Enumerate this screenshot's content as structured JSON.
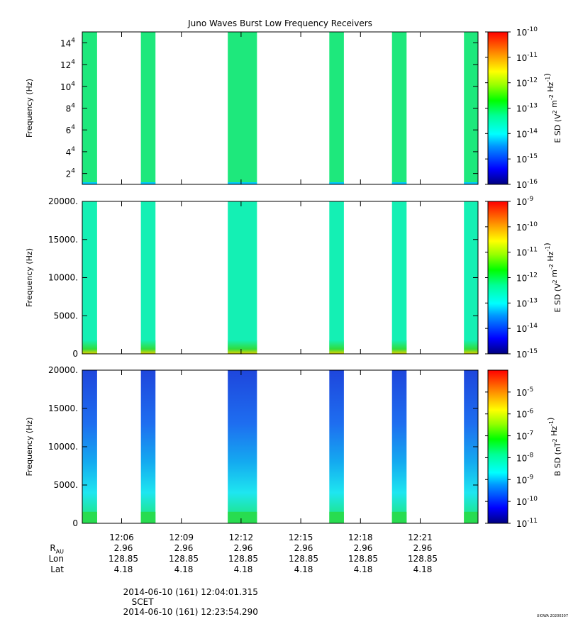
{
  "chart_data": [
    {
      "type": "heatmap",
      "title": "Juno Waves Burst Low Frequency Receivers",
      "ylabel": "Frequency (Hz)",
      "ylim": [
        10000,
        150000
      ],
      "yticks": [
        20000,
        40000,
        60000,
        80000,
        100000,
        120000,
        140000
      ],
      "ytick_labels": [
        {
          "mant": "2",
          "exp": "4"
        },
        {
          "mant": "4",
          "exp": "4"
        },
        {
          "mant": "6",
          "exp": "4"
        },
        {
          "mant": "8",
          "exp": "4"
        },
        {
          "mant": "10",
          "exp": "4"
        },
        {
          "mant": "12",
          "exp": "4"
        },
        {
          "mant": "14",
          "exp": "4"
        }
      ],
      "colorbar": {
        "label": "E SD (V^2 m^-2 Hz^-1)",
        "log_range": [
          -16,
          -10
        ],
        "ticks": [
          {
            "mant": "10",
            "exp": "-10"
          },
          {
            "mant": "10",
            "exp": "-11"
          },
          {
            "mant": "10",
            "exp": "-12"
          },
          {
            "mant": "10",
            "exp": "-13"
          },
          {
            "mant": "10",
            "exp": "-14"
          },
          {
            "mant": "10",
            "exp": "-15"
          },
          {
            "mant": "10",
            "exp": "-16"
          }
        ]
      },
      "dominant_color": "#1ee87c",
      "edge_color": "#00c8ff",
      "low_band": null
    },
    {
      "type": "heatmap",
      "title": "",
      "ylabel": "Frequency (Hz)",
      "ylim": [
        0,
        20000
      ],
      "yticks": [
        0,
        5000,
        10000,
        15000,
        20000
      ],
      "ytick_text": [
        "0",
        "5000.",
        "10000.",
        "15000.",
        "20000."
      ],
      "colorbar": {
        "label": "E SD (V^2 m^-2 Hz^-1)",
        "log_range": [
          -15,
          -9
        ],
        "ticks": [
          {
            "mant": "10",
            "exp": "-9"
          },
          {
            "mant": "10",
            "exp": "-10"
          },
          {
            "mant": "10",
            "exp": "-11"
          },
          {
            "mant": "10",
            "exp": "-12"
          },
          {
            "mant": "10",
            "exp": "-13"
          },
          {
            "mant": "10",
            "exp": "-14"
          },
          {
            "mant": "10",
            "exp": "-15"
          }
        ]
      },
      "dominant_color": "#14f0b4",
      "edge_color": "#14f0b4",
      "low_band": {
        "to_hz": 1800,
        "colors": [
          "#e6d200",
          "#32dc3c",
          "#14f0b4"
        ]
      }
    },
    {
      "type": "heatmap",
      "title": "",
      "ylabel": "Frequency (Hz)",
      "ylim": [
        0,
        20000
      ],
      "yticks": [
        0,
        5000,
        10000,
        15000,
        20000
      ],
      "ytick_text": [
        "0",
        "5000.",
        "10000.",
        "15000.",
        "20000."
      ],
      "xticks_text": [
        "12:06",
        "12:09",
        "12:12",
        "12:15",
        "12:18",
        "12:21"
      ],
      "colorbar": {
        "label": "B SD (nT^2 Hz^-1)",
        "log_range": [
          -11,
          -4
        ],
        "ticks": [
          {
            "mant": "10",
            "exp": "-5"
          },
          {
            "mant": "10",
            "exp": "-6"
          },
          {
            "mant": "10",
            "exp": "-7"
          },
          {
            "mant": "10",
            "exp": "-8"
          },
          {
            "mant": "10",
            "exp": "-9"
          },
          {
            "mant": "10",
            "exp": "-10"
          },
          {
            "mant": "10",
            "exp": "-11"
          }
        ]
      },
      "gradient_colors": [
        "#1e50e6",
        "#1e6ef0",
        "#14aaf0",
        "#1ee6f0",
        "#1ee6a0",
        "#28dc50"
      ],
      "low_band": {
        "to_hz": 1500,
        "colors": [
          "#28dc50",
          "#1ee6a0"
        ]
      }
    }
  ],
  "time_axis": {
    "start_seconds": 43441.315,
    "end_seconds": 44634.29,
    "ticks": [
      {
        "label": "12:06",
        "seconds": 43560
      },
      {
        "label": "12:09",
        "seconds": 43740
      },
      {
        "label": "12:12",
        "seconds": 43920
      },
      {
        "label": "12:15",
        "seconds": 44100
      },
      {
        "label": "12:18",
        "seconds": 44280
      },
      {
        "label": "12:21",
        "seconds": 44460
      }
    ],
    "bursts": [
      {
        "start": 43441.3,
        "end": 43486.0
      },
      {
        "start": 43618.0,
        "end": 43662.0
      },
      {
        "start": 43880.0,
        "end": 43968.0
      },
      {
        "start": 44186.0,
        "end": 44230.0
      },
      {
        "start": 44375.0,
        "end": 44419.0
      },
      {
        "start": 44592.0,
        "end": 44634.3
      }
    ]
  },
  "ephemeris": {
    "labels": {
      "r": "R",
      "r_sub": "AU",
      "lon": "Lon",
      "lat": "Lat"
    },
    "columns": [
      {
        "r": "2.96",
        "lon": "128.85",
        "lat": "4.18"
      },
      {
        "r": "2.96",
        "lon": "128.85",
        "lat": "4.18"
      },
      {
        "r": "2.96",
        "lon": "128.85",
        "lat": "4.18"
      },
      {
        "r": "2.96",
        "lon": "128.85",
        "lat": "4.18"
      },
      {
        "r": "2.96",
        "lon": "128.85",
        "lat": "4.18"
      },
      {
        "r": "2.96",
        "lon": "128.85",
        "lat": "4.18"
      }
    ]
  },
  "footer": {
    "start": "2014-06-10 (161) 12:04:01.315",
    "frame": "SCET",
    "end": "2014-06-10 (161) 12:23:54.290"
  },
  "credit": "UIOWA 20200307"
}
